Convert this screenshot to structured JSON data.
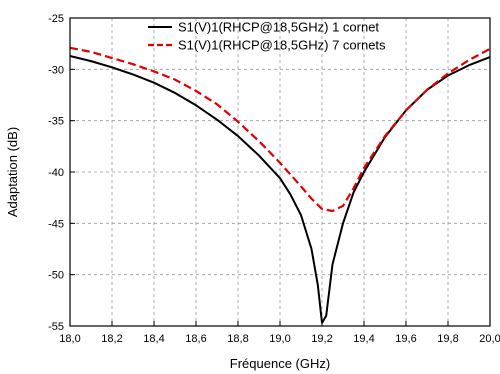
{
  "chart_data": {
    "type": "line",
    "title": "",
    "xlabel": "Fréquence (GHz)",
    "ylabel": "Adaptation (dB)",
    "xlim": [
      18.0,
      20.0
    ],
    "ylim": [
      -55,
      -25
    ],
    "x_ticks": [
      18.0,
      18.2,
      18.4,
      18.6,
      18.8,
      19.0,
      19.2,
      19.4,
      19.6,
      19.8,
      20.0
    ],
    "x_tick_labels": [
      "18,0",
      "18,2",
      "18,4",
      "18,6",
      "18,8",
      "19,0",
      "19,2",
      "19,4",
      "19,6",
      "19,8",
      "20,0"
    ],
    "y_ticks": [
      -55,
      -50,
      -45,
      -40,
      -35,
      -30,
      -25
    ],
    "y_tick_labels": [
      "-55",
      "-50",
      "-45",
      "-40",
      "-35",
      "-30",
      "-25"
    ],
    "grid": true,
    "grid_style": "dashed",
    "legend_position": "top-center",
    "series": [
      {
        "name": "S1(V)1(RHCP@18,5GHz) 1 cornet",
        "color": "#000000",
        "line_style": "solid",
        "x": [
          18.0,
          18.1,
          18.2,
          18.3,
          18.4,
          18.5,
          18.6,
          18.7,
          18.8,
          18.9,
          19.0,
          19.05,
          19.1,
          19.15,
          19.18,
          19.2,
          19.22,
          19.25,
          19.3,
          19.35,
          19.4,
          19.5,
          19.6,
          19.7,
          19.8,
          19.9,
          20.0
        ],
        "y": [
          -28.7,
          -29.2,
          -29.8,
          -30.5,
          -31.3,
          -32.3,
          -33.5,
          -34.9,
          -36.5,
          -38.4,
          -40.6,
          -42.2,
          -44.2,
          -47.5,
          -51.0,
          -54.7,
          -54.0,
          -49.0,
          -45.0,
          -42.0,
          -40.0,
          -36.6,
          -34.0,
          -32.0,
          -30.6,
          -29.6,
          -28.8
        ]
      },
      {
        "name": "S1(V)1(RHCP@18,5GHz) 7 cornets",
        "color": "#e00000",
        "line_style": "dashed",
        "x": [
          18.0,
          18.1,
          18.2,
          18.3,
          18.4,
          18.5,
          18.6,
          18.7,
          18.8,
          18.9,
          19.0,
          19.1,
          19.15,
          19.2,
          19.25,
          19.3,
          19.35,
          19.4,
          19.5,
          19.6,
          19.7,
          19.8,
          19.9,
          20.0
        ],
        "y": [
          -27.9,
          -28.3,
          -28.9,
          -29.5,
          -30.2,
          -31.0,
          -32.1,
          -33.4,
          -35.1,
          -37.0,
          -39.1,
          -41.4,
          -42.6,
          -43.6,
          -43.8,
          -43.3,
          -41.6,
          -39.6,
          -36.5,
          -34.0,
          -32.0,
          -30.4,
          -29.1,
          -28.0
        ]
      }
    ]
  }
}
